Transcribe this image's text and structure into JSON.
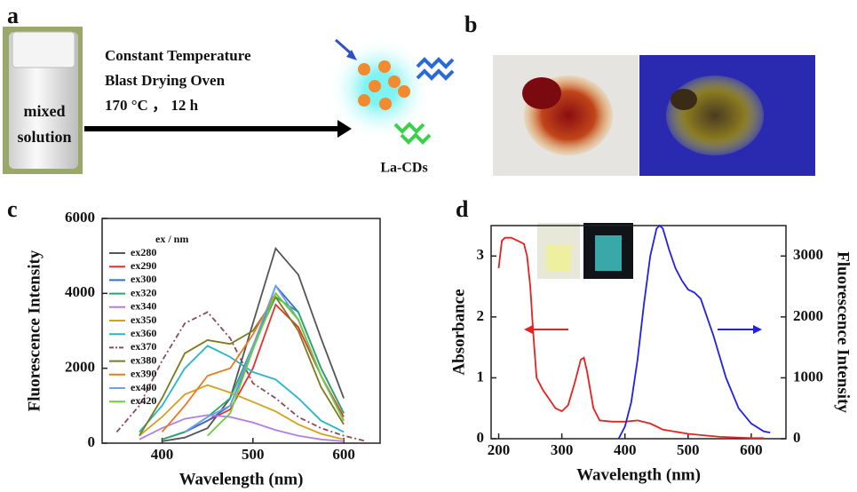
{
  "panel_a": {
    "label": "a",
    "vial_text": [
      "mixed",
      "solution"
    ],
    "condition_lines": [
      "Constant Temperature",
      "Blast Drying Oven",
      "170 °C ， 12 h"
    ],
    "product": "La-CDs"
  },
  "panel_b": {
    "label": "b"
  },
  "chart_data": [
    {
      "type": "line",
      "label": "c",
      "xlabel": "Wavelength (nm)",
      "ylabel": "Fluorescence Intensity",
      "legend_title": "ex / nm",
      "legend": "upper left",
      "xlim": [
        334,
        640
      ],
      "ylim": [
        0,
        6000
      ],
      "xticks": [
        400,
        500,
        600
      ],
      "yticks": [
        0,
        2000,
        4000,
        6000
      ],
      "x": [
        350,
        375,
        400,
        425,
        450,
        475,
        500,
        525,
        550,
        575,
        600,
        625
      ],
      "series": [
        {
          "name": "ex280",
          "color": "#555555",
          "values": [
            null,
            null,
            50,
            150,
            400,
            1200,
            3200,
            5200,
            4500,
            2800,
            1200,
            null
          ]
        },
        {
          "name": "ex290",
          "color": "#e8302a",
          "values": [
            null,
            null,
            100,
            300,
            600,
            900,
            2000,
            3700,
            3100,
            1800,
            700,
            null
          ]
        },
        {
          "name": "ex300",
          "color": "#2f6fd6",
          "values": [
            null,
            null,
            100,
            300,
            600,
            1000,
            2500,
            4200,
            3500,
            2000,
            800,
            null
          ]
        },
        {
          "name": "ex320",
          "color": "#2aa86a",
          "values": [
            null,
            null,
            100,
            300,
            700,
            1200,
            2600,
            3900,
            3500,
            2000,
            800,
            null
          ]
        },
        {
          "name": "ex340",
          "color": "#b07ee8",
          "values": [
            null,
            100,
            400,
            650,
            750,
            700,
            550,
            350,
            200,
            100,
            50,
            null
          ]
        },
        {
          "name": "ex350",
          "color": "#d4a020",
          "values": [
            null,
            200,
            700,
            1300,
            1550,
            1350,
            1100,
            850,
            500,
            250,
            100,
            null
          ]
        },
        {
          "name": "ex360",
          "color": "#22b8c8",
          "values": [
            null,
            300,
            1000,
            2000,
            2600,
            2300,
            1900,
            1700,
            1200,
            600,
            300,
            null
          ]
        },
        {
          "name": "ex370",
          "color": "#8a4a5a",
          "style": "dashed",
          "values": [
            300,
            1000,
            2200,
            3200,
            3500,
            2800,
            1600,
            1200,
            700,
            400,
            200,
            50
          ]
        },
        {
          "name": "ex380",
          "color": "#7a7a20",
          "values": [
            null,
            200,
            1200,
            2400,
            2750,
            2650,
            3000,
            3900,
            3000,
            1500,
            500,
            null
          ]
        },
        {
          "name": "ex390",
          "color": "#e87a20",
          "values": [
            null,
            null,
            300,
            1000,
            1800,
            2000,
            2900,
            4000,
            3300,
            1800,
            600,
            null
          ]
        },
        {
          "name": "ex400",
          "color": "#6fa0e8",
          "values": [
            null,
            null,
            null,
            300,
            700,
            1000,
            2600,
            4200,
            3300,
            1800,
            600,
            null
          ]
        },
        {
          "name": "ex420",
          "color": "#6acd3a",
          "values": [
            null,
            null,
            null,
            null,
            200,
            800,
            2500,
            4000,
            3300,
            1800,
            600,
            null
          ]
        }
      ]
    },
    {
      "type": "line",
      "label": "d",
      "xlabel": "Wavelength (nm)",
      "ylabel": "Absorbance",
      "y2label": "Fluorescence Intensity",
      "xlim": [
        188,
        655
      ],
      "ylim": [
        0,
        3.5
      ],
      "y2lim": [
        0,
        3500
      ],
      "xticks": [
        200,
        300,
        400,
        500,
        600
      ],
      "yticks": [
        0,
        1,
        2,
        3
      ],
      "y2ticks": [
        0,
        1000,
        2000,
        3000
      ],
      "series": [
        {
          "name": "Absorbance",
          "color": "#e82020",
          "x": [
            200,
            205,
            210,
            220,
            230,
            240,
            245,
            250,
            255,
            260,
            270,
            280,
            290,
            300,
            310,
            320,
            330,
            335,
            340,
            350,
            360,
            380,
            400,
            420,
            440,
            460,
            500,
            550,
            600,
            620
          ],
          "values": [
            2.8,
            3.25,
            3.3,
            3.3,
            3.25,
            3.2,
            3.0,
            2.5,
            1.7,
            1.0,
            0.8,
            0.65,
            0.5,
            0.45,
            0.55,
            0.9,
            1.3,
            1.33,
            1.1,
            0.5,
            0.3,
            0.28,
            0.28,
            0.3,
            0.25,
            0.15,
            0.08,
            0.03,
            0.01,
            0.01
          ]
        },
        {
          "name": "Fluorescence Intensity",
          "color": "#2020e8",
          "axis": "y2",
          "x": [
            390,
            400,
            410,
            420,
            430,
            440,
            450,
            455,
            460,
            470,
            480,
            490,
            500,
            510,
            520,
            530,
            540,
            560,
            580,
            600,
            620,
            630
          ],
          "values": [
            0,
            200,
            600,
            1300,
            2200,
            3000,
            3450,
            3500,
            3450,
            3100,
            2800,
            2600,
            2450,
            2400,
            2300,
            2000,
            1700,
            1000,
            500,
            250,
            120,
            100
          ]
        }
      ]
    }
  ]
}
